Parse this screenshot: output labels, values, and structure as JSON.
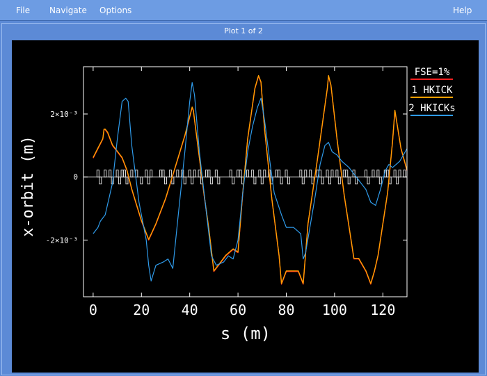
{
  "menu": {
    "file": "File",
    "navigate": "Navigate",
    "options": "Options",
    "help": "Help"
  },
  "window": {
    "title": "Plot 1 of 2"
  },
  "colors": {
    "background": "#000000",
    "axis": "#ffffff",
    "red": "#ff2020",
    "orange": "#ffa000",
    "blue": "#2f9bea",
    "lattice": "#d8d8d8"
  },
  "chart_data": {
    "type": "line",
    "title": "",
    "xlabel": "s (m)",
    "ylabel": "x-orbit (m)",
    "xlim": [
      -4,
      130
    ],
    "ylim": [
      -0.0038,
      0.0035
    ],
    "xticks": [
      0,
      20,
      40,
      60,
      80,
      100,
      120
    ],
    "yticks": [
      {
        "value": 0.002,
        "label": "2×10⁻³"
      },
      {
        "value": 0,
        "label": "0"
      },
      {
        "value": -0.002,
        "label": "-2×10⁻³"
      }
    ],
    "legend": {
      "placement": "right",
      "entries": [
        "FSE=1%",
        "1 HKICK",
        "2 HKICKs"
      ]
    },
    "series": [
      {
        "name": "FSE=1%",
        "color": "#ff2020",
        "x": [
          0,
          2,
          4,
          4.5,
          5,
          6,
          8,
          10,
          12,
          14,
          16,
          18,
          20,
          23,
          26,
          30,
          34,
          38,
          41,
          41.5,
          43,
          46,
          48,
          50,
          52,
          55,
          58,
          60,
          62,
          64,
          67,
          68.5,
          69.5,
          71,
          74,
          77,
          78,
          80,
          85,
          87,
          89,
          93,
          97,
          97.5,
          98.5,
          101,
          104,
          108,
          110,
          113,
          115,
          116.5,
          118,
          122,
          124,
          125,
          127.5,
          130
        ],
        "y": [
          0.0006,
          0.0009,
          0.0012,
          0.0015,
          0.0015,
          0.0014,
          0.001,
          0.0008,
          0.0006,
          0.0002,
          -0.0004,
          -0.0009,
          -0.0014,
          -0.002,
          -0.0015,
          -0.0007,
          0.0003,
          0.0013,
          0.0022,
          0.0021,
          0.0012,
          -0.0006,
          -0.0017,
          -0.003,
          -0.0028,
          -0.0025,
          -0.0023,
          -0.0024,
          -0.0005,
          0.0012,
          0.0028,
          0.0032,
          0.003,
          0.0015,
          -0.0007,
          -0.0025,
          -0.0034,
          -0.003,
          -0.003,
          -0.0034,
          -0.0015,
          0.0006,
          0.0028,
          0.0032,
          0.0029,
          0.0012,
          -0.0006,
          -0.0026,
          -0.0026,
          -0.003,
          -0.0034,
          -0.003,
          -0.0025,
          -0.0005,
          0.0011,
          0.0021,
          0.0009,
          0.0002
        ]
      },
      {
        "name": "1 HKICK",
        "color": "#ffa000",
        "x": [
          0,
          2,
          4,
          4.5,
          5,
          6,
          8,
          10,
          12,
          14,
          16,
          18,
          20,
          23,
          26,
          30,
          34,
          38,
          41,
          41.5,
          43,
          46,
          48,
          50,
          52,
          55,
          58,
          60,
          62,
          64,
          67,
          68.5,
          69.5,
          71,
          74,
          77,
          78,
          80,
          85,
          87,
          89,
          93,
          97,
          97.5,
          98.5,
          101,
          104,
          108,
          110,
          113,
          115,
          116.5,
          118,
          122,
          124,
          125,
          127.5,
          130
        ],
        "y": [
          0.00062,
          0.00092,
          0.00122,
          0.00152,
          0.00152,
          0.00142,
          0.00102,
          0.00082,
          0.00062,
          0.00022,
          -0.00038,
          -0.00088,
          -0.00138,
          -0.00198,
          -0.00148,
          -0.00068,
          0.00032,
          0.00132,
          0.00222,
          0.00212,
          0.00122,
          -0.00058,
          -0.00168,
          -0.00298,
          -0.00278,
          -0.00248,
          -0.00228,
          -0.00238,
          -0.00048,
          0.00122,
          0.00282,
          0.00322,
          0.00302,
          0.00152,
          -0.00068,
          -0.00248,
          -0.00338,
          -0.00298,
          -0.00298,
          -0.00338,
          -0.00148,
          0.00062,
          0.00282,
          0.00322,
          0.00292,
          0.00122,
          -0.00058,
          -0.00258,
          -0.00258,
          -0.00298,
          -0.00338,
          -0.00298,
          -0.00248,
          -0.00048,
          0.00112,
          0.00212,
          0.00092,
          0.00022
        ]
      },
      {
        "name": "2 HKICKs",
        "color": "#2f9bea",
        "x": [
          0,
          2,
          3,
          5,
          8,
          10,
          12,
          13.5,
          14.5,
          16,
          19,
          22,
          23,
          24,
          26,
          29,
          31,
          33,
          35,
          38,
          40,
          41,
          42,
          44,
          47,
          49,
          51,
          54,
          56,
          58,
          60,
          62,
          64,
          66,
          68,
          69.5,
          71,
          73,
          75,
          78,
          80,
          83,
          86,
          87,
          88,
          90,
          92,
          94,
          96,
          97.5,
          99,
          101,
          103,
          106,
          108,
          110,
          113,
          115,
          117,
          119,
          121,
          122.5,
          124,
          127,
          130
        ],
        "y": [
          -0.0018,
          -0.0016,
          -0.0014,
          -0.0012,
          -0.0002,
          0.0012,
          0.0024,
          0.0025,
          0.0024,
          0.001,
          -0.0008,
          -0.002,
          -0.0028,
          -0.0033,
          -0.0028,
          -0.0027,
          -0.0026,
          -0.0029,
          -0.0014,
          0.0008,
          0.0024,
          0.003,
          0.0026,
          0.0008,
          -0.0012,
          -0.0025,
          -0.0028,
          -0.0027,
          -0.0025,
          -0.0026,
          -0.002,
          -0.0005,
          0.0008,
          0.0016,
          0.0022,
          0.0025,
          0.0018,
          0.0006,
          -0.0005,
          -0.0012,
          -0.0016,
          -0.0016,
          -0.0018,
          -0.0026,
          -0.0024,
          -0.0015,
          -0.0006,
          0.0004,
          0.001,
          0.0011,
          0.0008,
          0.0007,
          0.0005,
          0.0003,
          0.0001,
          -0.0001,
          -0.0004,
          -0.0008,
          -0.0009,
          -0.0004,
          0.0002,
          0.0004,
          0.0003,
          0.0005,
          0.0009
        ]
      }
    ],
    "lattice": {
      "color": "#d8d8d8",
      "elements": [
        {
          "s": 2,
          "k": 1
        },
        {
          "s": 3,
          "k": -1
        },
        {
          "s": 5,
          "k": 1
        },
        {
          "s": 7,
          "k": 1
        },
        {
          "s": 8,
          "k": -1
        },
        {
          "s": 10,
          "k": 1
        },
        {
          "s": 11,
          "k": -1
        },
        {
          "s": 12,
          "k": 1
        },
        {
          "s": 13,
          "k": 1
        },
        {
          "s": 14,
          "k": -1
        },
        {
          "s": 16,
          "k": 1
        },
        {
          "s": 18,
          "k": 1
        },
        {
          "s": 20,
          "k": -1
        },
        {
          "s": 22,
          "k": 1
        },
        {
          "s": 23,
          "k": -1
        },
        {
          "s": 24,
          "k": 1
        },
        {
          "s": 28,
          "k": 1
        },
        {
          "s": 29,
          "k": 1
        },
        {
          "s": 30,
          "k": -1
        },
        {
          "s": 32,
          "k": 1
        },
        {
          "s": 33,
          "k": -1
        },
        {
          "s": 35,
          "k": 1
        },
        {
          "s": 37,
          "k": 1
        },
        {
          "s": 38,
          "k": -1
        },
        {
          "s": 40,
          "k": 1
        },
        {
          "s": 41,
          "k": -1
        },
        {
          "s": 42,
          "k": 1
        },
        {
          "s": 44,
          "k": 1
        },
        {
          "s": 45,
          "k": -1
        },
        {
          "s": 47,
          "k": 1
        },
        {
          "s": 48,
          "k": 1
        },
        {
          "s": 49,
          "k": -1
        },
        {
          "s": 51,
          "k": 1
        },
        {
          "s": 52,
          "k": -1
        },
        {
          "s": 57,
          "k": 1
        },
        {
          "s": 58,
          "k": -1
        },
        {
          "s": 60,
          "k": 1
        },
        {
          "s": 61,
          "k": 1
        },
        {
          "s": 62,
          "k": -1
        },
        {
          "s": 64,
          "k": 1
        },
        {
          "s": 66,
          "k": 1
        },
        {
          "s": 67,
          "k": -1
        },
        {
          "s": 69,
          "k": 1
        },
        {
          "s": 70,
          "k": -1
        },
        {
          "s": 71,
          "k": 1
        },
        {
          "s": 73,
          "k": 1
        },
        {
          "s": 74,
          "k": -1
        },
        {
          "s": 76,
          "k": 1
        },
        {
          "s": 77,
          "k": 1
        },
        {
          "s": 78,
          "k": -1
        },
        {
          "s": 80,
          "k": 1
        },
        {
          "s": 81,
          "k": -1
        },
        {
          "s": 86,
          "k": 1
        },
        {
          "s": 87,
          "k": -1
        },
        {
          "s": 88,
          "k": 1
        },
        {
          "s": 90,
          "k": 1
        },
        {
          "s": 91,
          "k": -1
        },
        {
          "s": 93,
          "k": 1
        },
        {
          "s": 94,
          "k": 1
        },
        {
          "s": 95,
          "k": -1
        },
        {
          "s": 97,
          "k": 1
        },
        {
          "s": 98,
          "k": -1
        },
        {
          "s": 99,
          "k": 1
        },
        {
          "s": 101,
          "k": 1
        },
        {
          "s": 102,
          "k": -1
        },
        {
          "s": 104,
          "k": 1
        },
        {
          "s": 105,
          "k": 1
        },
        {
          "s": 106,
          "k": -1
        },
        {
          "s": 108,
          "k": 1
        },
        {
          "s": 109,
          "k": -1
        },
        {
          "s": 113,
          "k": 1
        },
        {
          "s": 114,
          "k": -1
        },
        {
          "s": 116,
          "k": 1
        },
        {
          "s": 118,
          "k": 1
        },
        {
          "s": 119,
          "k": -1
        },
        {
          "s": 121,
          "k": 1
        },
        {
          "s": 122,
          "k": 1
        },
        {
          "s": 123,
          "k": -1
        },
        {
          "s": 125,
          "k": 1
        },
        {
          "s": 126,
          "k": -1
        },
        {
          "s": 127,
          "k": 1
        },
        {
          "s": 129,
          "k": 1
        }
      ]
    }
  }
}
